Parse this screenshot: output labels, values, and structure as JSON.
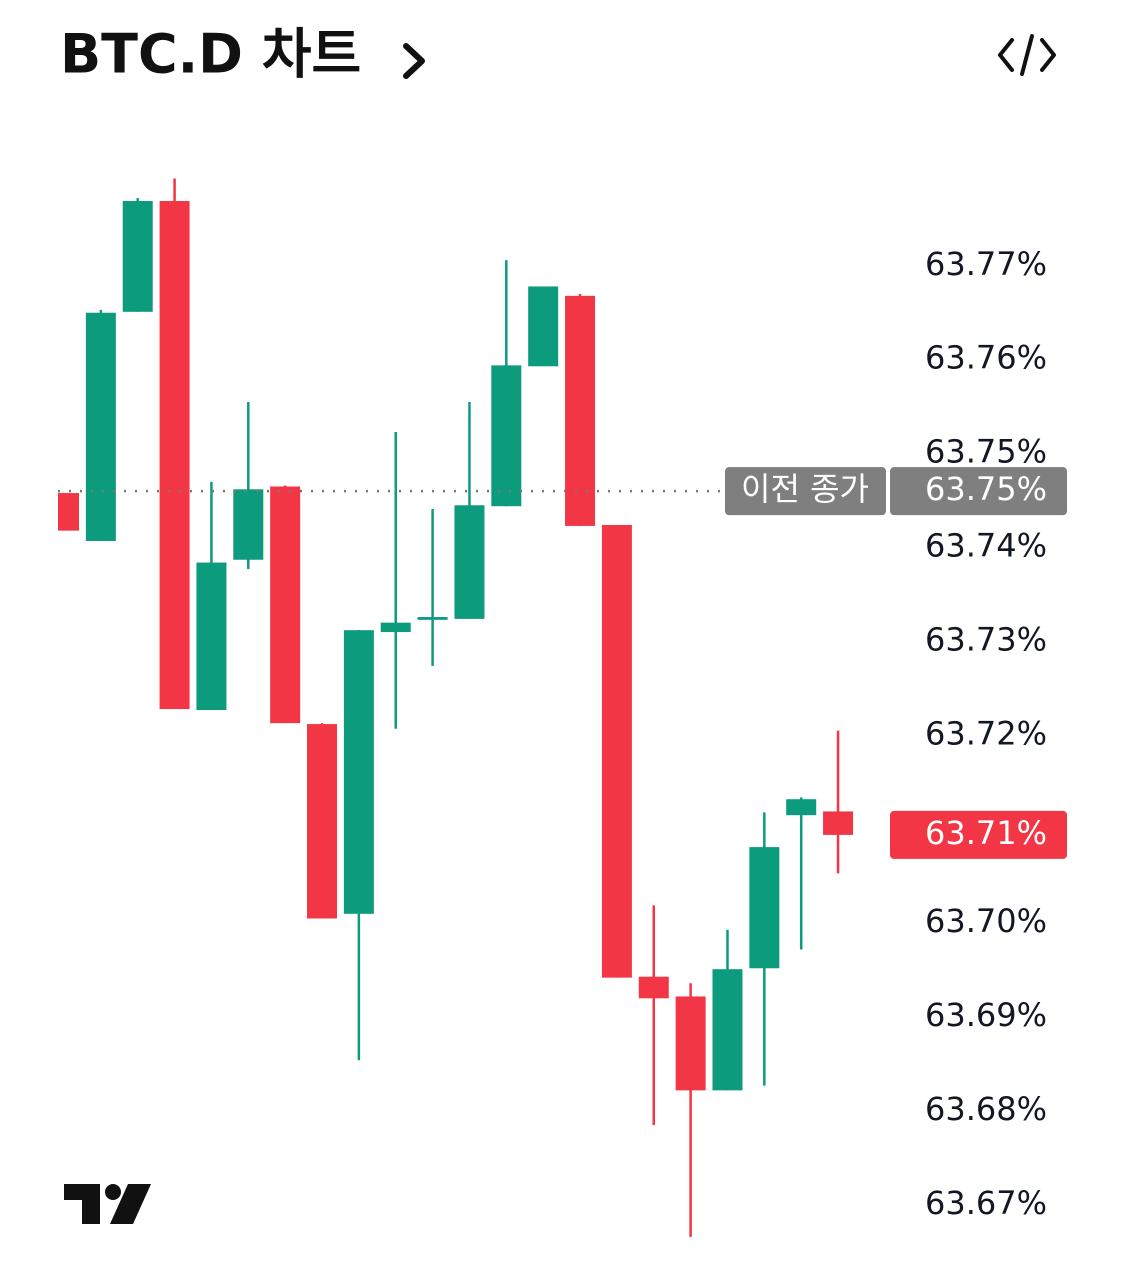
{
  "chart_data": {
    "type": "candlestick",
    "title": "BTC.D 차트",
    "open": [
      63.7458,
      63.7407,
      63.7651,
      63.7769,
      63.7227,
      63.7387,
      63.7465,
      63.7212,
      63.701,
      63.731,
      63.7323,
      63.7324,
      63.7444,
      63.7593,
      63.7668,
      63.7424,
      63.6943,
      63.6922,
      63.6822,
      63.6952,
      63.7115,
      63.7119
    ],
    "high": [
      63.7458,
      63.7653,
      63.7772,
      63.7793,
      63.747,
      63.7555,
      63.7466,
      63.7213,
      63.7312,
      63.7523,
      63.7441,
      63.7555,
      63.7706,
      63.7678,
      63.767,
      63.7424,
      63.7019,
      63.6936,
      63.6993,
      63.7118,
      63.7134,
      63.7205
    ],
    "low": [
      63.7418,
      63.7407,
      63.7651,
      63.7228,
      63.7227,
      63.7377,
      63.7213,
      63.7005,
      63.6854,
      63.7207,
      63.7274,
      63.7324,
      63.7444,
      63.7593,
      63.7423,
      63.6942,
      63.6785,
      63.6666,
      63.6822,
      63.6827,
      63.6972,
      63.7053
    ],
    "close": [
      63.7418,
      63.765,
      63.7769,
      63.7228,
      63.7384,
      63.7462,
      63.7213,
      63.7005,
      63.7312,
      63.732,
      63.7326,
      63.7445,
      63.7594,
      63.7678,
      63.7423,
      63.6942,
      63.692,
      63.6822,
      63.6951,
      63.7081,
      63.7132,
      63.7094
    ],
    "up_color": "#0d9b7d",
    "down_color": "#f23645",
    "ylim": [
      63.6652,
      63.7802
    ],
    "yticks": [
      {
        "value": 63.67,
        "label": "63.67%"
      },
      {
        "value": 63.68,
        "label": "63.68%"
      },
      {
        "value": 63.69,
        "label": "63.69%"
      },
      {
        "value": 63.7,
        "label": "63.70%"
      },
      {
        "value": 63.71,
        "label": "63.71%"
      },
      {
        "value": 63.72,
        "label": "63.72%"
      },
      {
        "value": 63.73,
        "label": "63.73%"
      },
      {
        "value": 63.74,
        "label": "63.74%"
      },
      {
        "value": 63.75,
        "label": "63.75%"
      },
      {
        "value": 63.76,
        "label": "63.76%"
      },
      {
        "value": 63.77,
        "label": "63.77%"
      }
    ],
    "previous_close": {
      "name": "이전 종가",
      "value": 63.746,
      "label": "63.75%"
    },
    "last_price_label": "63.71%"
  }
}
